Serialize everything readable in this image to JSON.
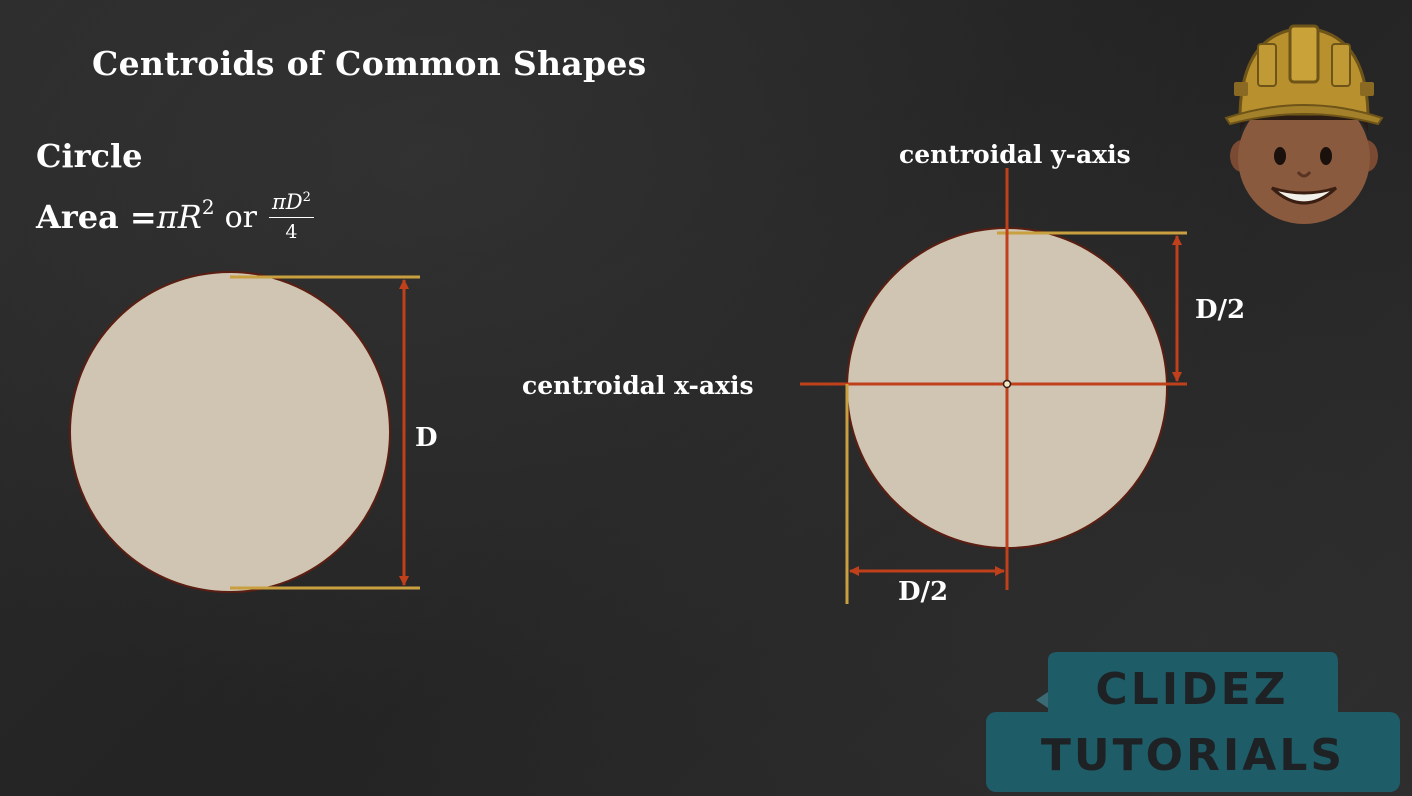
{
  "slide": {
    "title": "Centroids of Common Shapes",
    "shape_name": "Circle",
    "area": {
      "label": "Area =",
      "formula_1": "πR",
      "formula_1_exp": "2",
      "connector": "or",
      "fraction_numerator": "πD",
      "fraction_numerator_exp": "2",
      "fraction_denominator": "4"
    }
  },
  "diagram": {
    "left_dimension_label": "D",
    "y_axis_label": "centroidal y-axis",
    "x_axis_label": "centroidal x-axis",
    "vertical_half_label": "D/2",
    "horizontal_half_label": "D/2"
  },
  "colors": {
    "circle_fill": "#d0c4b2",
    "circle_stroke": "#5a1e12",
    "axis_red": "#c0401c",
    "extension_gold": "#c9a040",
    "background": "#262626"
  },
  "branding": {
    "logo_line_1": "CLIDEZ",
    "logo_line_2": "TUTORIALS",
    "mascot": "engineer-mascot-icon"
  }
}
